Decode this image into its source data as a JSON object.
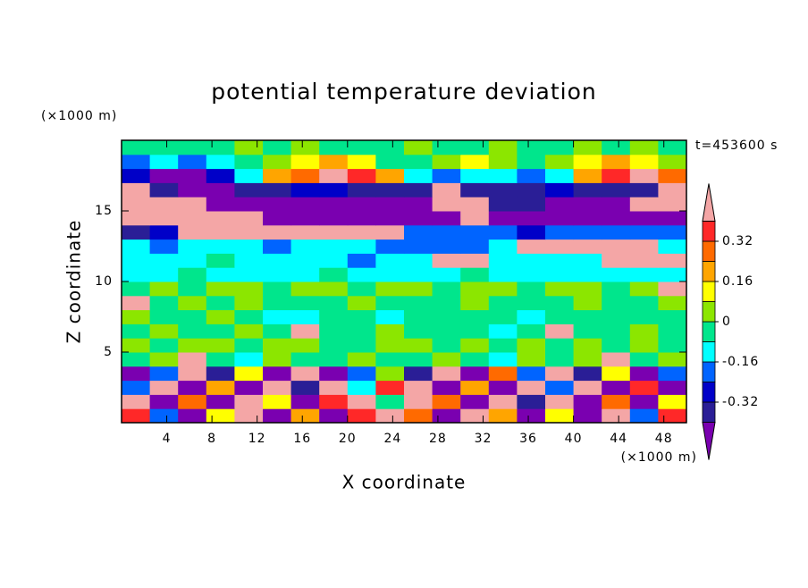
{
  "chart_data": {
    "type": "contourf",
    "title": "potential temperature deviation",
    "xlabel": "X coordinate",
    "ylabel": "Z coordinate",
    "xunit": "(×1000 m)",
    "yunit": "(×1000 m)",
    "annotation": "t=453600 s",
    "xlim": [
      0,
      50
    ],
    "ylim": [
      0,
      20
    ],
    "xticks": [
      4,
      8,
      12,
      16,
      20,
      24,
      28,
      32,
      36,
      40,
      44,
      48
    ],
    "yticks": [
      5,
      10,
      15
    ],
    "x": [
      1.25,
      3.75,
      6.25,
      8.75,
      11.25,
      13.75,
      16.25,
      18.75,
      21.25,
      23.75,
      26.25,
      28.75,
      31.25,
      33.75,
      36.25,
      38.75,
      41.25,
      43.75,
      46.25,
      48.75
    ],
    "y": [
      0.5,
      1.5,
      2.5,
      3.5,
      4.5,
      5.5,
      6.5,
      7.5,
      8.5,
      9.5,
      10.5,
      11.5,
      12.5,
      13.5,
      14.5,
      15.5,
      16.5,
      17.5,
      18.5,
      19.5
    ],
    "z": [
      [
        0.36,
        -0.2,
        -0.5,
        0.12,
        0.5,
        -0.5,
        0.2,
        -0.5,
        0.36,
        0.5,
        0.28,
        -0.5,
        0.5,
        0.2,
        -0.5,
        0.12,
        -0.5,
        0.5,
        -0.2,
        0.36
      ],
      [
        0.5,
        -0.5,
        0.28,
        -0.5,
        0.5,
        0.12,
        -0.5,
        0.36,
        0.5,
        -0.04,
        0.5,
        0.28,
        -0.5,
        0.5,
        -0.36,
        0.5,
        -0.5,
        0.28,
        -0.5,
        0.12
      ],
      [
        -0.2,
        0.5,
        -0.5,
        0.2,
        -0.5,
        0.5,
        -0.36,
        0.5,
        -0.12,
        0.36,
        0.5,
        -0.5,
        0.2,
        -0.5,
        0.5,
        -0.2,
        0.5,
        -0.5,
        0.36,
        -0.5
      ],
      [
        -0.5,
        -0.2,
        0.5,
        -0.36,
        0.12,
        -0.5,
        0.5,
        -0.5,
        -0.2,
        0.04,
        -0.36,
        0.5,
        -0.5,
        0.28,
        -0.2,
        0.5,
        -0.36,
        0.12,
        -0.5,
        -0.2
      ],
      [
        -0.04,
        0.04,
        0.5,
        -0.04,
        -0.12,
        0.04,
        -0.04,
        -0.04,
        0.04,
        -0.04,
        -0.04,
        0.04,
        -0.04,
        -0.12,
        0.04,
        -0.04,
        0.04,
        0.5,
        -0.04,
        0.04
      ],
      [
        0.04,
        -0.04,
        0.04,
        0.04,
        -0.04,
        0.04,
        0.04,
        -0.04,
        -0.04,
        0.04,
        0.04,
        -0.04,
        0.04,
        -0.04,
        0.04,
        -0.04,
        0.04,
        -0.04,
        0.04,
        -0.04
      ],
      [
        -0.04,
        0.04,
        -0.04,
        -0.04,
        0.04,
        -0.04,
        0.5,
        -0.04,
        -0.04,
        0.04,
        -0.04,
        -0.04,
        -0.04,
        -0.12,
        -0.04,
        0.5,
        -0.04,
        -0.04,
        0.04,
        -0.04
      ],
      [
        0.04,
        -0.04,
        -0.04,
        0.04,
        -0.04,
        -0.12,
        -0.12,
        -0.04,
        -0.04,
        -0.12,
        -0.04,
        -0.04,
        -0.04,
        -0.04,
        -0.12,
        -0.04,
        -0.04,
        -0.04,
        -0.04,
        -0.04
      ],
      [
        0.5,
        -0.04,
        0.04,
        -0.04,
        0.04,
        -0.04,
        -0.04,
        -0.04,
        0.04,
        -0.04,
        -0.04,
        -0.04,
        0.04,
        -0.04,
        -0.04,
        -0.04,
        0.04,
        -0.04,
        -0.04,
        0.04
      ],
      [
        -0.04,
        0.04,
        -0.04,
        0.04,
        0.04,
        -0.04,
        0.04,
        0.04,
        -0.04,
        0.04,
        0.04,
        -0.04,
        0.04,
        0.04,
        -0.04,
        0.04,
        0.04,
        -0.04,
        0.04,
        0.5
      ],
      [
        -0.12,
        -0.12,
        -0.04,
        -0.12,
        -0.12,
        -0.12,
        -0.12,
        -0.04,
        -0.12,
        -0.12,
        -0.12,
        -0.12,
        -0.04,
        -0.12,
        -0.12,
        -0.12,
        -0.12,
        -0.12,
        -0.12,
        -0.12
      ],
      [
        -0.12,
        -0.12,
        -0.12,
        -0.04,
        -0.12,
        -0.12,
        -0.12,
        -0.12,
        -0.2,
        -0.12,
        -0.12,
        0.5,
        0.5,
        -0.12,
        -0.12,
        -0.12,
        -0.12,
        0.5,
        0.5,
        0.5
      ],
      [
        -0.12,
        -0.2,
        -0.12,
        -0.12,
        -0.12,
        -0.2,
        -0.12,
        -0.12,
        -0.12,
        -0.2,
        -0.2,
        -0.2,
        -0.2,
        -0.12,
        0.5,
        0.5,
        0.5,
        0.5,
        0.5,
        -0.12
      ],
      [
        -0.36,
        -0.28,
        0.5,
        0.5,
        0.5,
        0.5,
        0.5,
        0.5,
        0.5,
        0.5,
        -0.2,
        -0.2,
        -0.2,
        -0.2,
        -0.28,
        -0.2,
        -0.2,
        -0.2,
        -0.2,
        -0.2
      ],
      [
        0.5,
        0.5,
        0.5,
        0.5,
        0.5,
        -0.5,
        -0.5,
        -0.5,
        -0.5,
        -0.5,
        -0.5,
        -0.5,
        0.5,
        -0.5,
        -0.5,
        -0.5,
        -0.5,
        -0.5,
        -0.5,
        -0.5
      ],
      [
        0.5,
        0.5,
        0.5,
        -0.5,
        -0.5,
        -0.5,
        -0.5,
        -0.5,
        -0.5,
        -0.5,
        -0.5,
        0.5,
        0.5,
        -0.36,
        -0.36,
        -0.5,
        -0.5,
        -0.5,
        0.5,
        0.5
      ],
      [
        0.5,
        -0.36,
        -0.5,
        -0.5,
        -0.36,
        -0.36,
        -0.28,
        -0.28,
        -0.36,
        -0.36,
        -0.36,
        0.5,
        -0.36,
        -0.36,
        -0.36,
        -0.28,
        -0.36,
        -0.36,
        -0.36,
        0.5
      ],
      [
        -0.28,
        -0.5,
        -0.5,
        -0.28,
        -0.12,
        0.2,
        0.28,
        0.5,
        0.36,
        0.2,
        -0.12,
        -0.2,
        -0.12,
        -0.12,
        -0.2,
        -0.12,
        0.2,
        0.36,
        0.5,
        0.28
      ],
      [
        -0.2,
        -0.12,
        -0.2,
        -0.12,
        -0.04,
        0.04,
        0.12,
        0.2,
        0.12,
        -0.04,
        -0.04,
        0.04,
        0.12,
        0.04,
        -0.04,
        0.04,
        0.12,
        0.2,
        0.12,
        0.04
      ],
      [
        -0.04,
        -0.04,
        -0.04,
        -0.04,
        0.04,
        -0.04,
        0.04,
        -0.04,
        -0.04,
        -0.04,
        0.04,
        -0.04,
        -0.04,
        0.04,
        -0.04,
        -0.04,
        0.04,
        -0.04,
        0.04,
        -0.04
      ]
    ],
    "colorbar": {
      "levels": [
        -0.4,
        -0.32,
        -0.24,
        -0.16,
        -0.08,
        0,
        0.08,
        0.16,
        0.24,
        0.32,
        0.4
      ],
      "colors": [
        "#7a00b0",
        "#2a1e96",
        "#0000c8",
        "#0064ff",
        "#00ffff",
        "#00e68c",
        "#8ce600",
        "#ffff00",
        "#ffa500",
        "#ff6a00",
        "#ff2828",
        "#f4a6a6"
      ],
      "ticks": [
        -0.32,
        -0.16,
        0,
        0.16,
        0.32
      ]
    }
  }
}
